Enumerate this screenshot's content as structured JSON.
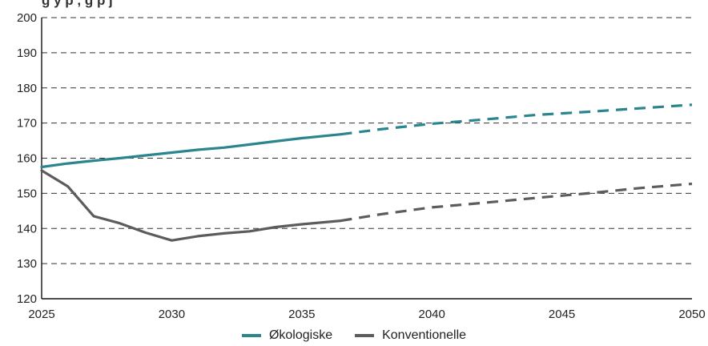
{
  "chart_data": {
    "type": "line",
    "title": "",
    "xlabel": "",
    "ylabel": "",
    "xlim": [
      2025,
      2050
    ],
    "ylim": [
      120,
      200
    ],
    "x_ticks": [
      "2025",
      "2030",
      "2035",
      "2040",
      "2045",
      "2050"
    ],
    "y_ticks": [
      "120",
      "130",
      "140",
      "150",
      "160",
      "170",
      "180",
      "190",
      "200"
    ],
    "grid": "horizontal dashed",
    "legend_position": "bottom",
    "series": [
      {
        "name": "Økologiske",
        "color": "#2a858d",
        "solid": [
          [
            2025,
            157.5
          ],
          [
            2026,
            158.5
          ],
          [
            2027,
            159.3
          ],
          [
            2028,
            160.0
          ],
          [
            2029,
            160.8
          ],
          [
            2030,
            161.6
          ],
          [
            2031,
            162.4
          ],
          [
            2032,
            163.0
          ],
          [
            2033,
            163.9
          ],
          [
            2034,
            164.8
          ],
          [
            2035,
            165.7
          ],
          [
            2036.5,
            166.8
          ]
        ],
        "projection": [
          [
            2036.5,
            166.8
          ],
          [
            2038,
            168.2
          ],
          [
            2040,
            169.8
          ],
          [
            2042,
            171.0
          ],
          [
            2044,
            172.3
          ],
          [
            2046,
            173.2
          ],
          [
            2048,
            174.2
          ],
          [
            2050,
            175.2
          ]
        ]
      },
      {
        "name": "Konventionelle",
        "color": "#5c5c5c",
        "solid": [
          [
            2025,
            156.5
          ],
          [
            2026,
            152.0
          ],
          [
            2027,
            143.5
          ],
          [
            2028,
            141.5
          ],
          [
            2029,
            138.8
          ],
          [
            2030,
            136.6
          ],
          [
            2031,
            137.8
          ],
          [
            2032,
            138.6
          ],
          [
            2033,
            139.2
          ],
          [
            2034,
            140.4
          ],
          [
            2035,
            141.2
          ],
          [
            2036.5,
            142.2
          ]
        ],
        "projection": [
          [
            2036.5,
            142.2
          ],
          [
            2038,
            144.0
          ],
          [
            2040,
            146.0
          ],
          [
            2042,
            147.3
          ],
          [
            2044,
            148.7
          ],
          [
            2046,
            150.0
          ],
          [
            2048,
            151.5
          ],
          [
            2050,
            152.7
          ]
        ]
      }
    ]
  },
  "header": {
    "title_fragment": "g        y   p        ,  g   p  j"
  }
}
